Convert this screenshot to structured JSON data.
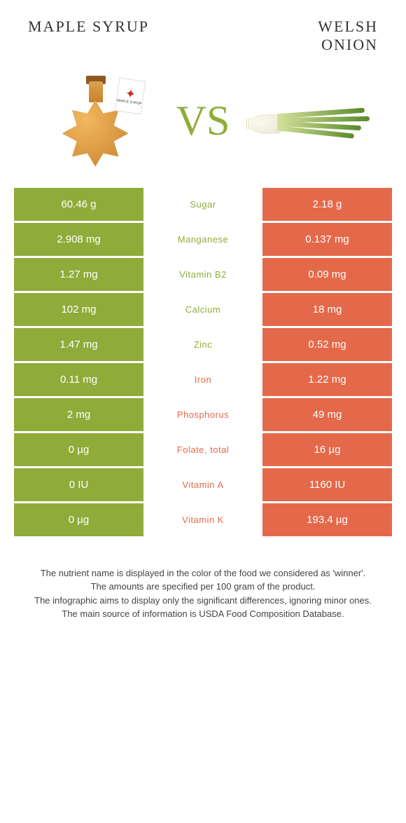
{
  "colors": {
    "green": "#8fac3a",
    "orange": "#e4694b",
    "text_green": "#8fac3a",
    "text_orange": "#e4694b"
  },
  "header": {
    "left_title": "MAPLE SYRUP",
    "right_title": "WELSH ONION",
    "vs": "VS"
  },
  "nutrients": [
    {
      "name": "Sugar",
      "left": "60.46 g",
      "right": "2.18 g",
      "winner": "left"
    },
    {
      "name": "Manganese",
      "left": "2.908 mg",
      "right": "0.137 mg",
      "winner": "left"
    },
    {
      "name": "Vitamin B2",
      "left": "1.27 mg",
      "right": "0.09 mg",
      "winner": "left"
    },
    {
      "name": "Calcium",
      "left": "102 mg",
      "right": "18 mg",
      "winner": "left"
    },
    {
      "name": "Zinc",
      "left": "1.47 mg",
      "right": "0.52 mg",
      "winner": "left"
    },
    {
      "name": "Iron",
      "left": "0.11 mg",
      "right": "1.22 mg",
      "winner": "right"
    },
    {
      "name": "Phosphorus",
      "left": "2 mg",
      "right": "49 mg",
      "winner": "right"
    },
    {
      "name": "Folate, total",
      "left": "0 µg",
      "right": "16 µg",
      "winner": "right"
    },
    {
      "name": "Vitamin A",
      "left": "0 IU",
      "right": "1160 IU",
      "winner": "right"
    },
    {
      "name": "Vitamin K",
      "left": "0 µg",
      "right": "193.4 µg",
      "winner": "right"
    }
  ],
  "footer": {
    "line1": "The nutrient name is displayed in the color of the food we considered as 'winner'.",
    "line2": "The amounts are specified per 100 gram of the product.",
    "line3": "The infographic aims to display only the significant differences, ignoring minor ones.",
    "line4": "The main source of information is USDA Food Composition Database."
  },
  "tag_text": "MAPLE SYRUP"
}
